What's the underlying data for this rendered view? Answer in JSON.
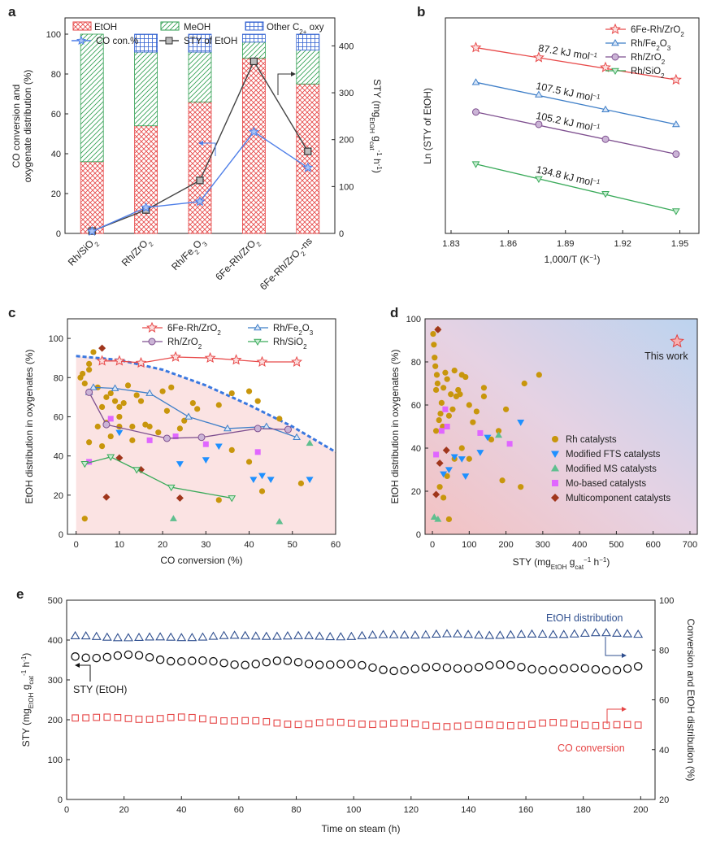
{
  "colors": {
    "etoh": "#e64545",
    "meoh": "#2e9e4f",
    "other": "#2f5fd0",
    "co_line": "#4f7fe8",
    "sty_line": "#444444",
    "b_6fe": "#e84b4b",
    "b_rhfe": "#3f7fc8",
    "b_rhzr": "#7e4f8f",
    "b_rhsi": "#3aaa5a",
    "gold": "#c8960c",
    "ftsblue": "#1e90ff",
    "msgreen": "#5fbf8f",
    "mo": "#e066ff",
    "multi": "#a0361c",
    "shade_c": "#fbe3e3",
    "e_blue": "#2f4f8f",
    "e_red": "#e64545",
    "e_black": "#111111"
  },
  "chart_data": [
    {
      "panel": "a",
      "type": "bar",
      "title": "",
      "categories": [
        "Rh/SiO",
        "Rh/ZrO",
        "Rh/Fe O",
        "6Fe-Rh/ZrO",
        "6Fe-Rh/ZrO -ns"
      ],
      "category_labels": [
        {
          "t": "Rh/SiO",
          "sub": "2"
        },
        {
          "t": "Rh/ZrO",
          "sub": "2"
        },
        {
          "t": "Rh/Fe",
          "sub": "2",
          "t2": "O",
          "sub2": "3"
        },
        {
          "t": "6Fe-Rh/ZrO",
          "sub": "2"
        },
        {
          "t": "6Fe-Rh/ZrO",
          "sub": "2",
          "t2": "-ns"
        }
      ],
      "series": [
        {
          "name": "EtOH",
          "values": [
            36,
            54,
            66,
            88,
            75
          ]
        },
        {
          "name": "MeOH",
          "values": [
            64,
            37,
            25,
            8,
            17
          ]
        },
        {
          "name": "Other C2+ oxy",
          "values": [
            0,
            9,
            9,
            4,
            8
          ]
        },
        {
          "name": "CO con.%",
          "values": [
            1,
            13,
            16,
            51,
            33
          ]
        },
        {
          "name": "STY of EtOH",
          "values": [
            5,
            50,
            113,
            367,
            175
          ]
        }
      ],
      "legend": [
        "EtOH",
        "MeOH",
        "Other C",
        "2+",
        " oxy",
        "CO con.%",
        "STY of EtOH"
      ],
      "ylabel": [
        "CO conversion and",
        "oxygenate distribution (%)"
      ],
      "ylabel_right": [
        "STY (mg",
        "EtOH",
        " g",
        "cat",
        "-1",
        " h",
        "-1",
        ")"
      ],
      "ylim": [
        0,
        100
      ],
      "ylim_right": [
        0,
        425
      ],
      "yticks": [
        "0",
        "20",
        "40",
        "60",
        "80",
        "100"
      ],
      "yticks_right": [
        "0",
        "100",
        "200",
        "300",
        "400"
      ]
    },
    {
      "panel": "b",
      "type": "scatter",
      "xlabel": "1,000/T (K",
      "xlabel_sup": "−1",
      "xlabel_end": ")",
      "ylabel": "Ln (STY of EtOH)",
      "xlim": [
        1.83,
        1.96
      ],
      "xticks": [
        "1.83",
        "1.86",
        "1.89",
        "1.92",
        "1.95"
      ],
      "series": [
        {
          "name": "6Fe-Rh/ZrO",
          "sub": "2",
          "x": [
            1.843,
            1.876,
            1.911,
            1.948
          ],
          "y": [
            9.0,
            8.6,
            8.2,
            7.7
          ],
          "ea": "87.2 kJ mol",
          "marker": "star"
        },
        {
          "name": "Rh/Fe",
          "sub": "2",
          "t2": "O",
          "sub2": "3",
          "x": [
            1.843,
            1.876,
            1.911,
            1.948
          ],
          "y": [
            7.6,
            7.1,
            6.5,
            5.9
          ],
          "ea": "107.5 kJ mol",
          "marker": "triangle"
        },
        {
          "name": "Rh/ZrO",
          "sub": "2",
          "x": [
            1.843,
            1.876,
            1.911,
            1.948
          ],
          "y": [
            6.4,
            5.9,
            5.3,
            4.7
          ],
          "ea": "105.2 kJ mol",
          "marker": "circle"
        },
        {
          "name": "Rh/SiO",
          "sub": "2",
          "x": [
            1.843,
            1.876,
            1.911,
            1.948
          ],
          "y": [
            4.3,
            3.7,
            3.1,
            2.4
          ],
          "ea": "134.8 kJ mol",
          "marker": "down"
        }
      ],
      "ea_sup": "−1"
    },
    {
      "panel": "c",
      "type": "scatter",
      "xlabel": "CO conversion (%)",
      "ylabel": "EtOH distribution in oxygenates (%)",
      "xlim": [
        0,
        60
      ],
      "ylim": [
        0,
        105
      ],
      "xticks": [
        "0",
        "10",
        "20",
        "30",
        "40",
        "50",
        "60"
      ],
      "yticks": [
        "0",
        "20",
        "40",
        "60",
        "80",
        "100"
      ],
      "boundary": {
        "x": [
          0,
          10,
          20,
          30,
          40,
          50,
          60
        ],
        "y": [
          91,
          89,
          84,
          76,
          66,
          55,
          42
        ]
      },
      "series": [
        {
          "name": "6Fe-Rh/ZrO",
          "sub": "2",
          "x": [
            6,
            10,
            15,
            23,
            31,
            37,
            43,
            51
          ],
          "y": [
            88.5,
            88.5,
            87.5,
            90.5,
            90,
            89,
            88,
            88
          ]
        },
        {
          "name": "Rh/Fe",
          "sub": "2",
          "t2": "O",
          "sub2": "3",
          "x": [
            3,
            4,
            9,
            17,
            26,
            35,
            44,
            51
          ],
          "y": [
            72.5,
            75,
            74.5,
            72,
            60,
            54,
            55,
            49.5
          ]
        },
        {
          "name": "Rh/ZrO",
          "sub": "2",
          "x": [
            3,
            7,
            21,
            29,
            42,
            49
          ],
          "y": [
            72.5,
            56,
            49,
            49.5,
            54,
            53.5
          ]
        },
        {
          "name": "Rh/SiO",
          "sub": "2",
          "x": [
            2,
            8,
            14,
            22,
            36
          ],
          "y": [
            36,
            39.5,
            33,
            24,
            18.5
          ]
        }
      ],
      "gold": {
        "x": [
          1,
          1.5,
          2,
          3,
          4,
          5,
          5,
          6,
          7,
          8,
          9,
          10,
          10,
          11,
          12,
          14,
          15,
          16,
          17,
          20,
          21,
          25,
          27,
          28,
          33,
          36,
          40,
          43,
          52,
          2,
          3,
          6,
          7,
          13,
          19,
          22,
          33,
          36,
          40,
          42,
          3,
          8,
          10,
          13,
          24,
          47
        ],
        "y": [
          80,
          82,
          77,
          84,
          93,
          55,
          75,
          65,
          70,
          72,
          68,
          65,
          60,
          67,
          76,
          71,
          68,
          56,
          55,
          73,
          63,
          58,
          67,
          64,
          66,
          72,
          73,
          22,
          26,
          8,
          47,
          45,
          57,
          55,
          52,
          75,
          17.5,
          43,
          37,
          68,
          87,
          50,
          55,
          48,
          54,
          59
        ]
      },
      "fts": {
        "x": [
          10,
          24,
          30,
          33,
          41,
          43,
          45,
          54
        ],
        "y": [
          52,
          36,
          38,
          45,
          28,
          30,
          28,
          28
        ]
      },
      "ms": {
        "x": [
          22.5,
          47,
          54
        ],
        "y": [
          8,
          6.5,
          46.5
        ]
      },
      "mo": {
        "x": [
          3,
          8,
          17,
          23,
          30,
          42
        ],
        "y": [
          37,
          59,
          48,
          50,
          46,
          42
        ]
      },
      "multi": {
        "x": [
          6,
          7,
          10,
          15,
          24
        ],
        "y": [
          95,
          19,
          39,
          33,
          18.5
        ]
      }
    },
    {
      "panel": "d",
      "type": "scatter",
      "xlabel": "STY (mg",
      "xlabel_sub1": "EtOH",
      "xlabel_mid": " g",
      "xlabel_sub2": "cat",
      "xlabel_sup": "−1",
      "xlabel_end": " h",
      "xlabel_sup2": "−1",
      "xlabel_close": ")",
      "ylabel": "EtOH distribution in oxygenates (%)",
      "xlim": [
        -10,
        720
      ],
      "ylim": [
        0,
        100
      ],
      "xticks": [
        "0",
        "100",
        "200",
        "300",
        "400",
        "500",
        "600",
        "700"
      ],
      "yticks": [
        "0",
        "20",
        "40",
        "60",
        "80",
        "100"
      ],
      "this_work": {
        "x": 665,
        "y": 89.5,
        "label": "This work"
      },
      "categories_legend": [
        "Rh catalysts",
        "Modified FTS catalysts",
        "Modified MS catalysts",
        "Mo-based catalysts",
        "Multicomponent catalysts"
      ],
      "gold": {
        "x": [
          2,
          4,
          6,
          8,
          10,
          12,
          14,
          18,
          22,
          25,
          30,
          35,
          40,
          45,
          50,
          55,
          60,
          65,
          70,
          75,
          80,
          90,
          100,
          110,
          120,
          140,
          160,
          180,
          200,
          250,
          290,
          10,
          20,
          30,
          40,
          60,
          80,
          100,
          140,
          190,
          240,
          15,
          28,
          45
        ],
        "y": [
          93,
          88,
          82,
          78,
          67,
          74,
          70,
          53,
          56,
          61,
          68,
          75,
          72,
          55,
          65,
          58,
          76,
          64,
          67,
          65,
          74,
          73,
          60,
          52,
          57,
          64,
          44,
          48,
          58,
          70,
          74,
          48,
          22,
          17,
          27,
          35,
          40,
          35,
          68,
          25,
          22,
          95,
          50,
          7
        ]
      },
      "fts": {
        "x": [
          30,
          45,
          60,
          80,
          90,
          130,
          150,
          240
        ],
        "y": [
          28,
          30,
          36,
          35,
          27,
          38,
          45,
          52
        ]
      },
      "ms": {
        "x": [
          5,
          15,
          180
        ],
        "y": [
          8,
          7,
          46
        ]
      },
      "mo": {
        "x": [
          25,
          35,
          40,
          130,
          210,
          10
        ],
        "y": [
          48,
          58,
          50,
          47,
          42,
          37
        ]
      },
      "multi": {
        "x": [
          15,
          20,
          38,
          10
        ],
        "y": [
          95,
          33,
          39,
          18.5
        ]
      }
    },
    {
      "panel": "e",
      "type": "scatter",
      "xlabel": "Time on steam (h)",
      "ylabel_left": [
        "STY (mg",
        "EtOH",
        " g",
        "cat",
        "-1",
        " h",
        "-1",
        ")"
      ],
      "ylabel_right": "Conversion and EtOH distribution (%)",
      "xlim": [
        0,
        205
      ],
      "ylim": [
        0,
        500
      ],
      "ylim_right": [
        20,
        100
      ],
      "xticks": [
        "0",
        "20",
        "40",
        "60",
        "80",
        "100",
        "120",
        "140",
        "160",
        "180",
        "200"
      ],
      "yticks": [
        "0",
        "100",
        "200",
        "300",
        "400",
        "500"
      ],
      "yticks_right": [
        "20",
        "40",
        "60",
        "80",
        "100"
      ],
      "series": [
        {
          "name": "EtOH distribution",
          "axis": "right",
          "values_desc": "approx. 85-87 %",
          "mean": 86
        },
        {
          "name": "STY (EtOH)",
          "axis": "left",
          "mean": 340
        },
        {
          "name": "CO conversion",
          "axis": "right",
          "mean": 51
        }
      ],
      "annotations": {
        "etoh": "EtOH distribution",
        "sty": "STY (EtOH)",
        "co": "CO conversion"
      }
    }
  ],
  "labels": {
    "a": "a",
    "b": "b",
    "c": "c",
    "d": "d",
    "e": "e"
  },
  "texts": {
    "a_leg_etoh": "EtOH",
    "a_leg_meoh": "MeOH",
    "a_leg_other": "Other C",
    "a_leg_other_sub": "2+",
    "a_leg_other_end": " oxy",
    "a_leg_co": "CO con.%",
    "a_leg_sty": "STY of EtOH"
  }
}
